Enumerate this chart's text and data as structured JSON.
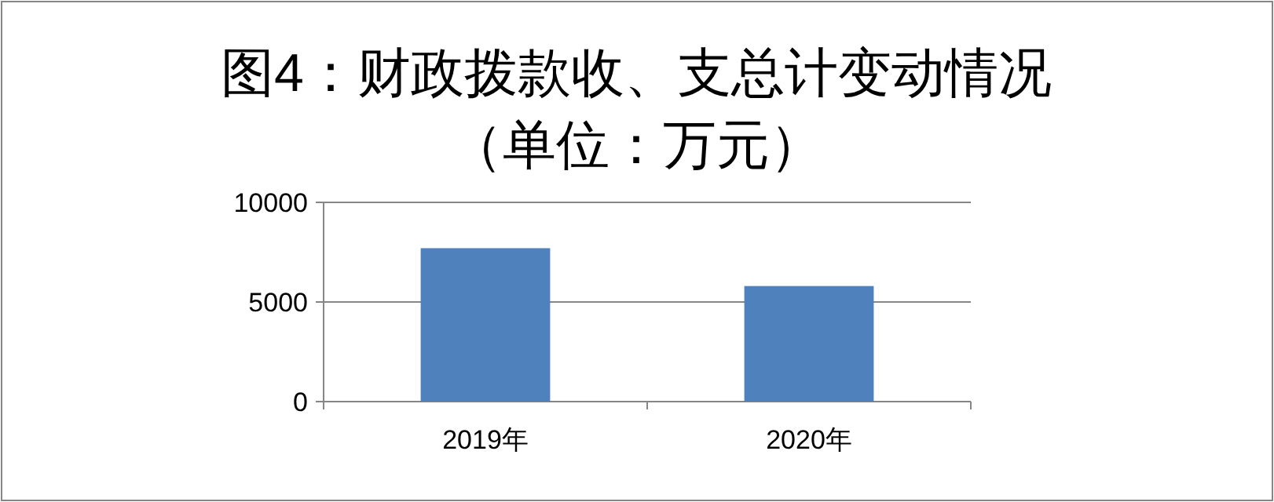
{
  "chart_data": {
    "type": "bar",
    "title": "图4：财政拨款收、支总计变动情况",
    "subtitle": "（单位：万元）",
    "categories": [
      "2019年",
      "2020年"
    ],
    "values": [
      7700,
      5800
    ],
    "color": "#4f81bd",
    "ylim": [
      0,
      10000
    ],
    "yticks": [
      0,
      5000,
      10000
    ],
    "grid": "y"
  }
}
